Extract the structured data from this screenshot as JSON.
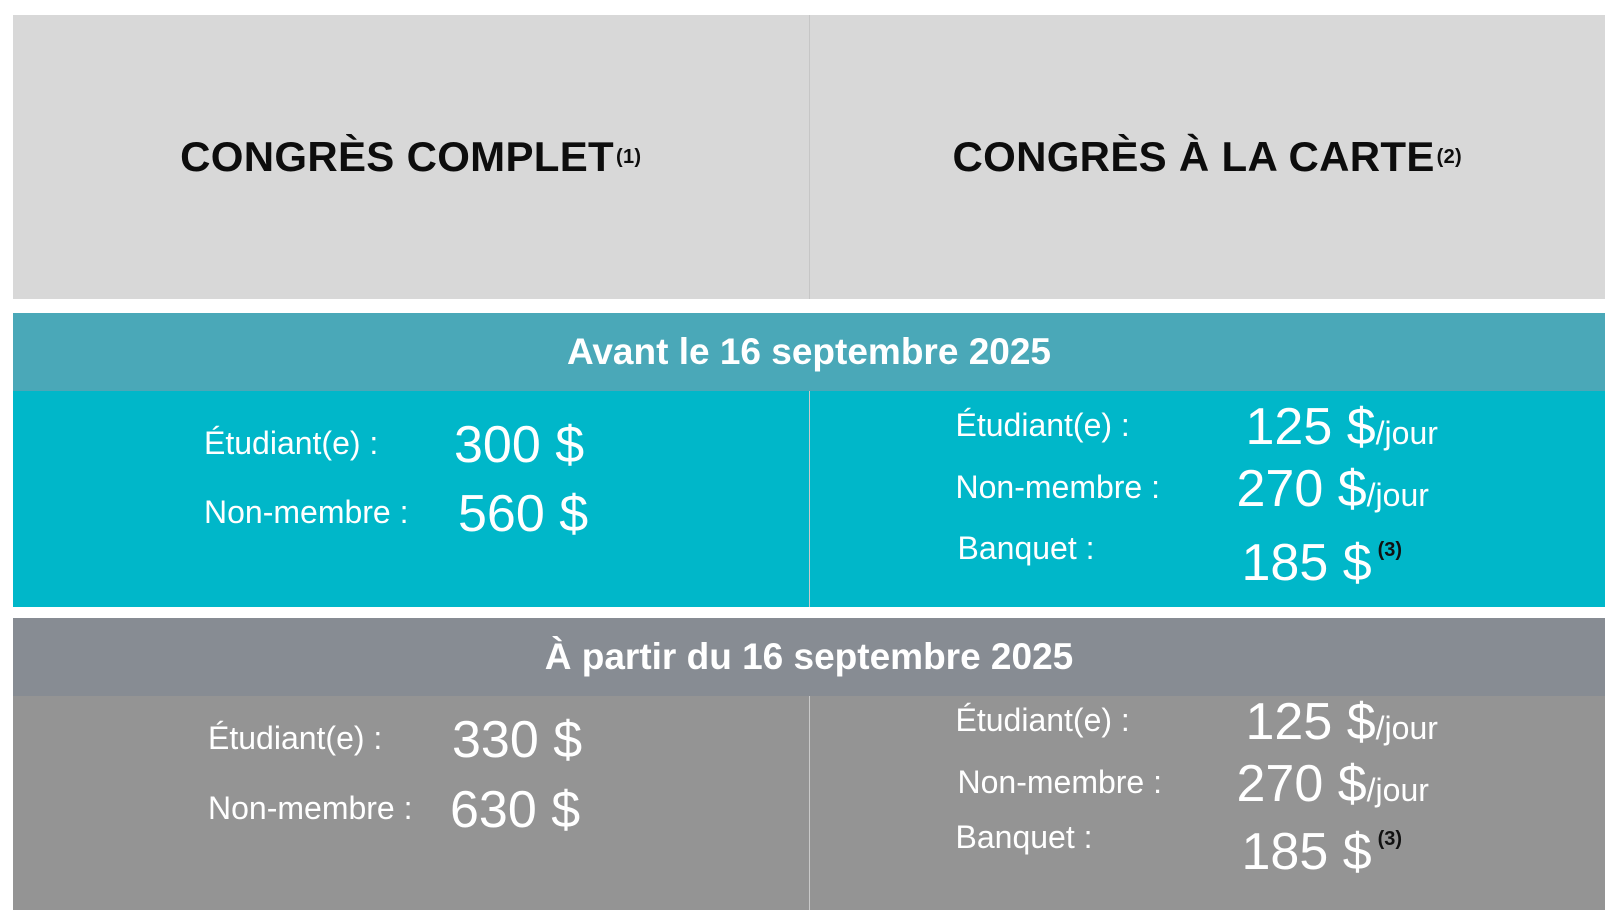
{
  "header": {
    "complet": {
      "title": "CONGRÈS COMPLET",
      "note": "(1)"
    },
    "carte": {
      "title": "CONGRÈS À LA CARTE",
      "note": "(2)"
    }
  },
  "periods": {
    "before": {
      "label": "Avant le 16 septembre 2025",
      "complet": [
        {
          "label": "Étudiant(e) :",
          "price": "300 $"
        },
        {
          "label": "Non-membre :",
          "price": "560 $"
        }
      ],
      "carte": [
        {
          "label": "Étudiant(e) :",
          "price": "125 $",
          "unit": "/jour"
        },
        {
          "label": "Non-membre :",
          "price": "270 $",
          "unit": "/jour"
        },
        {
          "label": "Banquet :",
          "price": "185 $",
          "note": "(3)"
        }
      ]
    },
    "after": {
      "label": "À partir du 16 septembre 2025",
      "complet": [
        {
          "label": "Étudiant(e) :",
          "price": "330 $"
        },
        {
          "label": "Non-membre :",
          "price": "630 $"
        }
      ],
      "carte": [
        {
          "label": "Étudiant(e) :",
          "price": "125 $",
          "unit": "/jour"
        },
        {
          "label": "Non-membre :",
          "price": "270 $",
          "unit": "/jour"
        },
        {
          "label": "Banquet :",
          "price": "185 $",
          "note": "(3)"
        }
      ]
    }
  },
  "colors": {
    "header_bg": "#d8d8d8",
    "before_band": "#4aa8b8",
    "before_body": "#00b7c9",
    "after_band": "#878c93",
    "after_body": "#949494"
  }
}
